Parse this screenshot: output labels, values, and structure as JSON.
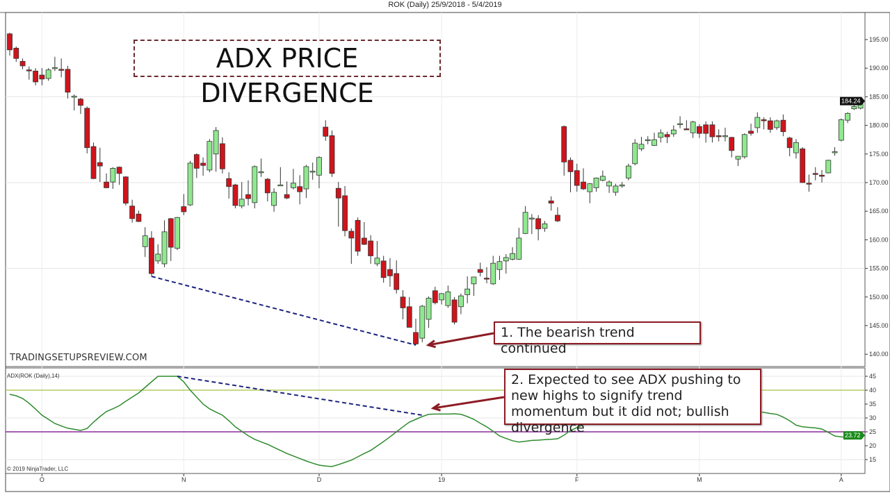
{
  "window_title": "ROK (Daily)  25/9/2018 - 5/4/2019",
  "headline": "ADX PRICE DIVERGENCE",
  "watermark": "TRADINGSETUPSREVIEW.COM",
  "indicator_label": "ADX(ROK (Daily),14)",
  "copyright": "© 2019 NinjaTrader, LLC",
  "annotations": {
    "callout_1": "1. The bearish trend continued",
    "callout_2": "2. Expected to see ADX pushing to new highs to signify trend momentum but it did not; bullish divergence"
  },
  "colors": {
    "up": "#90e890",
    "down": "#d0141c",
    "adx_line": "#2e8b2e",
    "level_40": "#a8c040",
    "level_25": "#8b2a9b",
    "divergence": "#1a237e",
    "callout_border": "#8c1c24"
  },
  "chart_data": [
    {
      "type": "candlestick",
      "title": "ROK (Daily)  25/9/2018 - 5/4/2019",
      "ylim": [
        138,
        198
      ],
      "yticks": [
        "140.00",
        "145.00",
        "150.00",
        "155.00",
        "160.00",
        "165.00",
        "170.00",
        "175.00",
        "180.00",
        "185.00",
        "190.00",
        "195.00"
      ],
      "last_price_label": "184.24",
      "month_ticks": [
        {
          "label": "O",
          "bar": 6
        },
        {
          "label": "N",
          "bar": 28
        },
        {
          "label": "D",
          "bar": 49
        },
        {
          "label": "19",
          "bar": 68
        },
        {
          "label": "F",
          "bar": 89
        },
        {
          "label": "M",
          "bar": 108
        },
        {
          "label": "A",
          "bar": 130
        }
      ],
      "divergence_line": {
        "from": {
          "bar": 23,
          "price": 153.6
        },
        "to": {
          "bar": 64,
          "price": 141.6
        }
      },
      "ohlc": [
        [
          196.0,
          196.2,
          192.2,
          193.2
        ],
        [
          193.5,
          193.8,
          191.1,
          191.7
        ],
        [
          191.2,
          191.7,
          189.8,
          190.4
        ],
        [
          189.7,
          190.3,
          188.0,
          189.6
        ],
        [
          189.5,
          190.0,
          187.0,
          187.6
        ],
        [
          188.8,
          190.0,
          187.0,
          188.1
        ],
        [
          188.2,
          190.0,
          187.8,
          189.7
        ],
        [
          190.0,
          192.0,
          189.5,
          190.1
        ],
        [
          189.8,
          191.7,
          188.4,
          189.7
        ],
        [
          189.8,
          190.4,
          184.7,
          185.8
        ],
        [
          185.0,
          185.4,
          182.6,
          185.1
        ],
        [
          184.6,
          184.8,
          182.0,
          183.5
        ],
        [
          183.0,
          183.3,
          175.1,
          176.1
        ],
        [
          176.3,
          177.0,
          170.6,
          170.7
        ],
        [
          173.5,
          176.1,
          170.1,
          172.9
        ],
        [
          170.1,
          171.6,
          169.0,
          169.1
        ],
        [
          170.1,
          172.7,
          168.9,
          172.5
        ],
        [
          172.7,
          172.8,
          169.6,
          171.6
        ],
        [
          171.0,
          171.1,
          166.0,
          166.4
        ],
        [
          165.9,
          167.0,
          163.0,
          163.7
        ],
        [
          164.5,
          165.1,
          163.1,
          163.2
        ],
        [
          158.8,
          162.2,
          157.0,
          160.7
        ],
        [
          160.3,
          161.5,
          153.6,
          154.1
        ],
        [
          156.3,
          159.2,
          155.8,
          157.5
        ],
        [
          155.8,
          163.4,
          155.2,
          161.4
        ],
        [
          163.7,
          163.8,
          156.3,
          158.7
        ],
        [
          158.5,
          164.0,
          158.2,
          163.9
        ],
        [
          165.8,
          168.0,
          164.3,
          164.9
        ],
        [
          166.1,
          173.8,
          165.9,
          173.4
        ],
        [
          174.9,
          175.1,
          170.8,
          172.5
        ],
        [
          173.4,
          174.4,
          171.2,
          173.0
        ],
        [
          172.2,
          177.6,
          171.8,
          177.2
        ],
        [
          175.0,
          179.7,
          171.9,
          179.1
        ],
        [
          176.8,
          177.9,
          171.6,
          172.4
        ],
        [
          170.7,
          171.8,
          167.2,
          169.3
        ],
        [
          169.6,
          169.8,
          165.5,
          166.0
        ],
        [
          165.9,
          170.1,
          165.5,
          167.1
        ],
        [
          167.9,
          170.4,
          166.0,
          167.2
        ],
        [
          166.5,
          173.0,
          165.5,
          172.8
        ],
        [
          171.8,
          174.2,
          171.0,
          171.9
        ],
        [
          170.6,
          170.8,
          166.7,
          168.2
        ],
        [
          166.0,
          169.0,
          164.9,
          168.3
        ],
        [
          169.5,
          172.7,
          169.4,
          169.6
        ],
        [
          167.9,
          170.2,
          167.1,
          167.3
        ],
        [
          169.1,
          172.4,
          168.8,
          169.9
        ],
        [
          169.3,
          171.3,
          166.2,
          168.4
        ],
        [
          168.9,
          173.1,
          167.3,
          172.8
        ],
        [
          171.9,
          173.5,
          170.5,
          172.0
        ],
        [
          171.3,
          174.6,
          169.0,
          174.4
        ],
        [
          179.7,
          180.9,
          177.3,
          178.1
        ],
        [
          178.2,
          179.1,
          171.0,
          171.6
        ],
        [
          169.0,
          170.1,
          162.3,
          167.3
        ],
        [
          167.7,
          169.4,
          160.6,
          161.6
        ],
        [
          161.5,
          162.0,
          155.8,
          160.3
        ],
        [
          163.4,
          163.9,
          157.2,
          158.0
        ],
        [
          160.3,
          163.1,
          159.1,
          159.2
        ],
        [
          159.8,
          160.8,
          155.8,
          157.2
        ],
        [
          155.8,
          159.8,
          155.4,
          156.8
        ],
        [
          156.3,
          157.2,
          152.5,
          153.4
        ],
        [
          154.8,
          156.8,
          151.8,
          153.7
        ],
        [
          154.1,
          156.4,
          150.6,
          151.3
        ],
        [
          150.0,
          151.2,
          146.1,
          148.1
        ],
        [
          148.3,
          150.0,
          144.7,
          144.7
        ],
        [
          143.8,
          146.2,
          141.6,
          141.8
        ],
        [
          142.8,
          148.6,
          142.1,
          148.4
        ],
        [
          146.1,
          150.1,
          144.6,
          149.8
        ],
        [
          151.1,
          151.8,
          148.7,
          149.0
        ],
        [
          149.5,
          150.7,
          148.7,
          150.6
        ],
        [
          148.5,
          152.0,
          148.1,
          150.9
        ],
        [
          149.5,
          150.0,
          145.2,
          145.6
        ],
        [
          148.3,
          150.6,
          147.0,
          150.2
        ],
        [
          150.4,
          153.6,
          148.9,
          151.4
        ],
        [
          152.3,
          153.5,
          150.2,
          153.5
        ],
        [
          154.8,
          156.0,
          153.6,
          154.3
        ],
        [
          153.3,
          155.2,
          152.4,
          153.2
        ],
        [
          152.3,
          157.2,
          152.1,
          155.9
        ],
        [
          154.8,
          157.2,
          153.0,
          156.2
        ],
        [
          156.3,
          157.5,
          154.1,
          156.9
        ],
        [
          156.6,
          158.7,
          156.4,
          157.6
        ],
        [
          156.6,
          162.1,
          156.5,
          160.3
        ],
        [
          161.1,
          165.9,
          161.0,
          164.8
        ],
        [
          163.7,
          164.5,
          161.0,
          163.8
        ],
        [
          163.7,
          164.3,
          159.9,
          161.9
        ],
        [
          162.0,
          163.3,
          161.4,
          162.8
        ],
        [
          166.8,
          167.6,
          165.1,
          166.4
        ],
        [
          164.3,
          165.7,
          163.1,
          163.3
        ],
        [
          179.8,
          180.0,
          171.2,
          173.6
        ],
        [
          173.9,
          174.4,
          168.3,
          171.9
        ],
        [
          172.1,
          173.3,
          168.4,
          169.5
        ],
        [
          170.1,
          172.5,
          168.7,
          168.9
        ],
        [
          168.4,
          169.9,
          166.4,
          169.8
        ],
        [
          169.1,
          170.9,
          168.4,
          170.8
        ],
        [
          170.4,
          172.1,
          170.2,
          171.1
        ],
        [
          169.4,
          170.4,
          168.2,
          170.1
        ],
        [
          168.3,
          169.8,
          167.7,
          169.4
        ],
        [
          169.4,
          170.1,
          169.1,
          169.6
        ],
        [
          170.8,
          173.3,
          170.4,
          172.9
        ],
        [
          173.3,
          177.6,
          173.0,
          176.9
        ],
        [
          175.9,
          178.0,
          175.5,
          176.7
        ],
        [
          177.4,
          178.1,
          176.7,
          177.5
        ],
        [
          176.5,
          178.7,
          176.4,
          177.5
        ],
        [
          177.9,
          179.3,
          177.0,
          178.7
        ],
        [
          178.4,
          178.9,
          176.9,
          178.0
        ],
        [
          178.5,
          180.0,
          178.0,
          179.2
        ],
        [
          180.2,
          181.6,
          179.5,
          180.3
        ],
        [
          179.4,
          180.9,
          179.2,
          179.3
        ],
        [
          178.7,
          180.8,
          177.8,
          180.6
        ],
        [
          179.8,
          180.2,
          177.8,
          178.6
        ],
        [
          180.1,
          180.7,
          177.0,
          178.6
        ],
        [
          180.1,
          180.7,
          177.0,
          178.0
        ],
        [
          178.2,
          179.3,
          177.2,
          178.1
        ],
        [
          178.1,
          179.6,
          177.2,
          178.2
        ],
        [
          177.9,
          178.0,
          174.4,
          175.6
        ],
        [
          174.1,
          174.6,
          172.9,
          174.6
        ],
        [
          174.5,
          178.6,
          174.2,
          178.4
        ],
        [
          179.0,
          180.3,
          178.2,
          178.6
        ],
        [
          179.6,
          182.3,
          178.7,
          181.4
        ],
        [
          181.0,
          181.4,
          179.3,
          180.8
        ],
        [
          180.8,
          181.4,
          178.7,
          179.3
        ],
        [
          179.6,
          181.0,
          179.2,
          180.8
        ],
        [
          180.9,
          181.9,
          178.1,
          178.9
        ],
        [
          177.8,
          178.0,
          174.6,
          176.1
        ],
        [
          175.2,
          177.6,
          174.2,
          177.0
        ],
        [
          175.9,
          176.2,
          170.0,
          170.0
        ],
        [
          169.9,
          171.4,
          168.4,
          169.8
        ],
        [
          171.6,
          172.7,
          170.4,
          171.5
        ],
        [
          171.3,
          172.2,
          170.0,
          171.1
        ],
        [
          171.7,
          174.0,
          171.6,
          173.9
        ],
        [
          175.3,
          176.2,
          174.7,
          175.4
        ],
        [
          177.4,
          181.2,
          177.2,
          181.0
        ],
        [
          180.9,
          182.3,
          180.4,
          182.1
        ],
        [
          182.9,
          184.4,
          182.7,
          183.3
        ],
        [
          183.0,
          184.6,
          182.8,
          184.24
        ]
      ]
    },
    {
      "type": "line",
      "title": "ADX(ROK (Daily),14)",
      "ylim": [
        11,
        47
      ],
      "yticks": [
        "15",
        "20",
        "25",
        "30",
        "35",
        "40",
        "45"
      ],
      "levels": [
        40,
        25
      ],
      "last_value_label": "23.72",
      "divergence_line": {
        "from": {
          "bar": 27,
          "value": 45.0
        },
        "to": {
          "bar": 65,
          "value": 31.0
        }
      },
      "values": [
        38.5,
        38.0,
        37.0,
        35.3,
        33.2,
        31.0,
        29.5,
        28.0,
        27.1,
        26.3,
        25.9,
        25.5,
        26.2,
        28.5,
        30.5,
        32.3,
        33.3,
        34.4,
        36.0,
        37.5,
        39.0,
        41.0,
        43.0,
        45.0,
        45.0,
        45.0,
        45.0,
        43.0,
        40.0,
        37.5,
        35.0,
        33.3,
        32.1,
        31.0,
        29.0,
        26.8,
        25.2,
        23.6,
        22.3,
        21.4,
        20.5,
        19.4,
        18.3,
        17.2,
        16.3,
        15.4,
        14.5,
        13.7,
        13.0,
        12.7,
        12.5,
        13.2,
        14.0,
        14.8,
        16.0,
        17.2,
        18.3,
        19.9,
        21.5,
        23.2,
        25.0,
        26.8,
        28.5,
        29.5,
        30.5,
        31.3,
        31.4,
        31.4,
        31.4,
        31.5,
        31.3,
        30.5,
        29.5,
        28.1,
        26.8,
        25.2,
        23.5,
        22.6,
        21.8,
        21.3,
        21.6,
        21.9,
        22.0,
        22.2,
        22.3,
        22.5,
        23.8,
        25.5,
        26.5,
        27.5,
        28.1,
        28.7,
        29.3,
        29.9,
        30.5,
        30.9,
        31.3,
        31.7,
        32.1,
        32.5,
        32.6,
        32.7,
        32.8,
        32.9,
        33.0,
        32.9,
        32.8,
        32.7,
        32.6,
        32.5,
        32.5,
        32.5,
        32.5,
        32.5,
        32.4,
        32.3,
        32.3,
        32.0,
        31.6,
        31.3,
        30.3,
        29.0,
        27.4,
        26.8,
        26.6,
        26.4,
        26.0,
        24.8,
        23.5,
        23.2,
        23.0,
        23.3,
        23.72
      ]
    }
  ]
}
